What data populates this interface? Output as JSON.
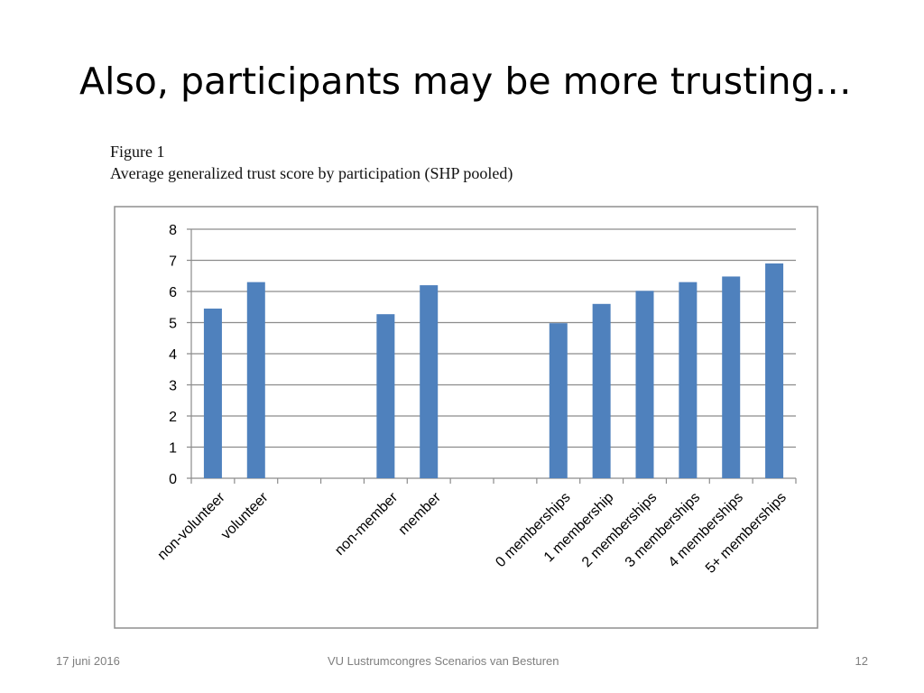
{
  "slide": {
    "title": "Also, participants may be more trusting…"
  },
  "figure": {
    "label": "Figure 1",
    "caption": "Average generalized trust score by participation (SHP pooled)"
  },
  "chart_data": {
    "type": "bar",
    "categories": [
      "non-volunteer",
      "volunteer",
      "",
      "",
      "non-member",
      "member",
      "",
      "",
      "0 memberships",
      "1 membership",
      "2 memberships",
      "3 memberships",
      "4 memberships",
      "5+ memberships"
    ],
    "values": [
      5.45,
      6.3,
      null,
      null,
      5.27,
      6.2,
      null,
      null,
      4.98,
      5.6,
      6.02,
      6.3,
      6.48,
      6.9
    ],
    "title": "",
    "xlabel": "",
    "ylabel": "",
    "ylim": [
      0,
      8
    ],
    "yticks": [
      0,
      1,
      2,
      3,
      4,
      5,
      6,
      7,
      8
    ],
    "grid": true,
    "legend": "none",
    "bar_color": "#4f81bd",
    "grid_color": "#8c8c8c"
  },
  "footer": {
    "date": "17 juni 2016",
    "center": "VU Lustrumcongres Scenarios van Besturen",
    "page": "12"
  }
}
